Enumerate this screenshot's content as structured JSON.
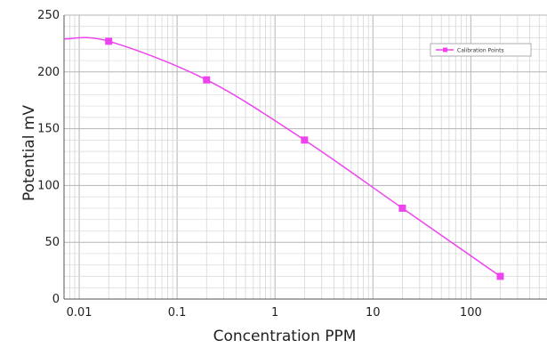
{
  "chart_data": {
    "type": "scatter",
    "xscale": "log",
    "xlim": [
      0.007,
      600
    ],
    "ylim": [
      0,
      250
    ],
    "xticks": [
      0.01,
      0.1,
      1,
      10,
      100
    ],
    "xtick_labels": [
      "0.01",
      "0.1",
      "1",
      "10",
      "100"
    ],
    "yticks": [
      0,
      50,
      100,
      150,
      200,
      250
    ],
    "ytick_labels": [
      "0",
      "50",
      "100",
      "150",
      "200",
      "250"
    ],
    "xlabel": "Concentration PPM",
    "ylabel": "Potential mV",
    "grid": true,
    "legend_position": "top-right",
    "series": [
      {
        "name": "Calibration Points",
        "color": "#ee44ee",
        "marker": "square",
        "points": [
          {
            "x": 0.02,
            "y": 227
          },
          {
            "x": 0.2,
            "y": 193
          },
          {
            "x": 2,
            "y": 140
          },
          {
            "x": 20,
            "y": 80
          },
          {
            "x": 200,
            "y": 20
          }
        ],
        "curve_start": {
          "x": 0.007,
          "y": 229
        }
      }
    ]
  }
}
